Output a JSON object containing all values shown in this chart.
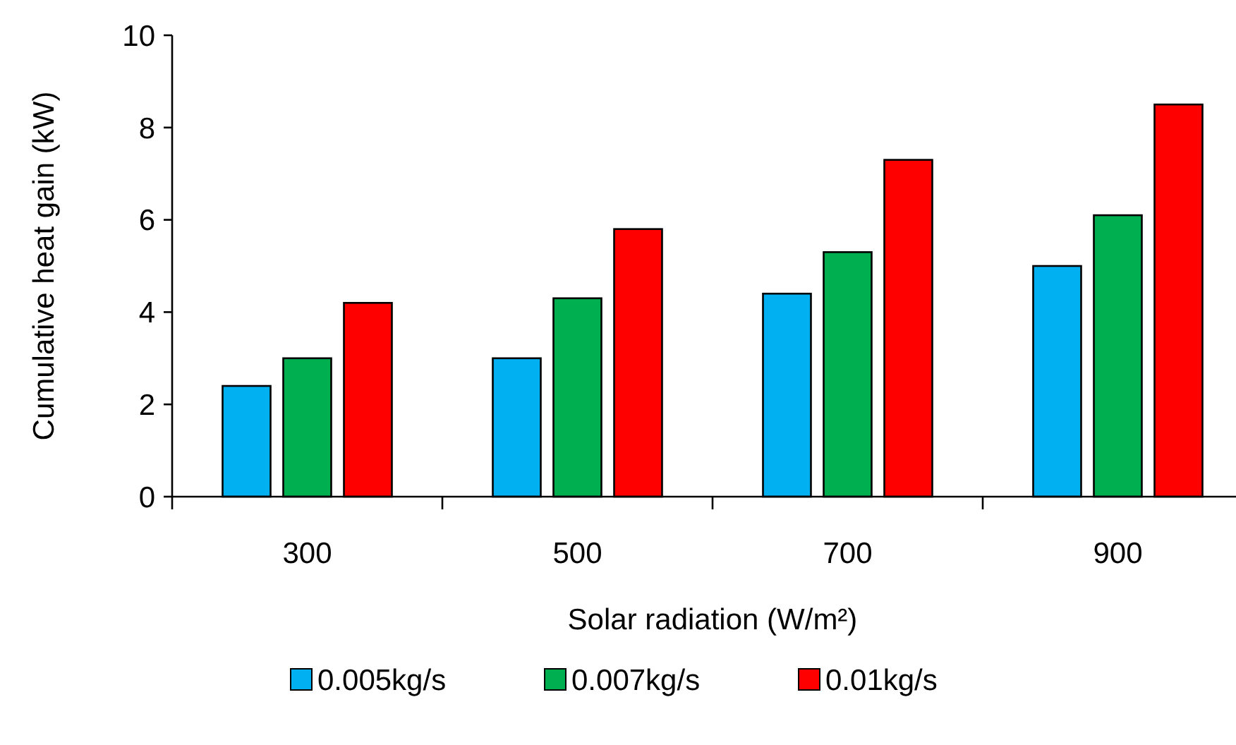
{
  "chart_data": {
    "type": "bar",
    "xlabel": "Solar radiation (W/m²)",
    "ylabel": "Cumulative heat gain (kW)",
    "categories": [
      "300",
      "500",
      "700",
      "900"
    ],
    "series": [
      {
        "name": "0.005kg/s",
        "color": "#00b0f0",
        "values": [
          2.4,
          3.0,
          4.4,
          5.0
        ]
      },
      {
        "name": "0.007kg/s",
        "color": "#00b050",
        "values": [
          3.0,
          4.3,
          5.3,
          6.1
        ]
      },
      {
        "name": "0.01kg/s",
        "color": "#ff0000",
        "values": [
          4.2,
          5.8,
          7.3,
          8.5
        ]
      }
    ],
    "ylim": [
      0,
      10
    ],
    "yticks": [
      0,
      2,
      4,
      6,
      8,
      10
    ],
    "grid": false,
    "legend": "bottom"
  }
}
